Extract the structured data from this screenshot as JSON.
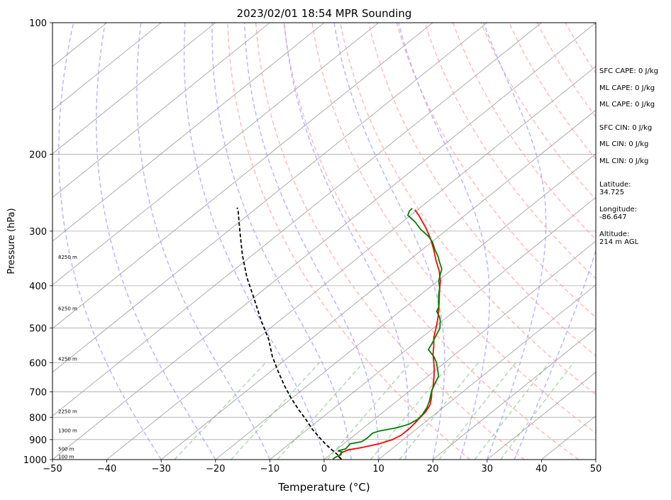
{
  "chart_data": {
    "type": "line",
    "title": "2023/02/01 18:54 MPR Sounding",
    "xlabel": "Temperature (°C)",
    "ylabel": "Pressure (hPa)",
    "xlim": [
      -50,
      50
    ],
    "ylim": [
      1000,
      100
    ],
    "y_scale": "log",
    "skew_t": true,
    "grid": true,
    "x_ticks": [
      -50,
      -40,
      -30,
      -20,
      -10,
      0,
      10,
      20,
      30,
      40,
      50
    ],
    "x_tick_labels": [
      "−50",
      "−40",
      "−30",
      "−20",
      "−10",
      "0",
      "10",
      "20",
      "30",
      "40",
      "50"
    ],
    "y_ticks": [
      100,
      200,
      300,
      400,
      500,
      600,
      700,
      800,
      900,
      1000
    ],
    "y_tick_labels": [
      "100",
      "200",
      "300",
      "400",
      "500",
      "600",
      "700",
      "800",
      "900",
      "1000"
    ],
    "height_labels": [
      {
        "text": "8250 m",
        "p": 347
      },
      {
        "text": "6250 m",
        "p": 455
      },
      {
        "text": "4250 m",
        "p": 594
      },
      {
        "text": "2250 m",
        "p": 783
      },
      {
        "text": "1300 m",
        "p": 866
      },
      {
        "text": "500 m",
        "p": 954
      },
      {
        "text": "100 m",
        "p": 995
      }
    ],
    "series": [
      {
        "color": "#ff0000",
        "points": [
          [
            3.2,
            1000
          ],
          [
            2.0,
            985
          ],
          [
            1.6,
            965
          ],
          [
            2.2,
            950
          ],
          [
            4.0,
            940
          ],
          [
            6.5,
            920
          ],
          [
            8.0,
            900
          ],
          [
            8.6,
            880
          ],
          [
            8.6,
            850
          ],
          [
            8.3,
            820
          ],
          [
            8.0,
            800
          ],
          [
            7.8,
            780
          ],
          [
            7.0,
            750
          ],
          [
            5.5,
            720
          ],
          [
            4.3,
            700
          ],
          [
            3.3,
            680
          ],
          [
            1.5,
            650
          ],
          [
            -0.5,
            620
          ],
          [
            -2.0,
            600
          ],
          [
            -4.0,
            575
          ],
          [
            -5.8,
            550
          ],
          [
            -7.8,
            525
          ],
          [
            -9.5,
            500
          ],
          [
            -11.8,
            470
          ],
          [
            -14.5,
            440
          ],
          [
            -17.5,
            410
          ],
          [
            -19.5,
            390
          ],
          [
            -22.0,
            370
          ],
          [
            -25.0,
            350
          ],
          [
            -28.0,
            330
          ],
          [
            -31.0,
            312
          ],
          [
            -34.5,
            294
          ],
          [
            -38.5,
            276
          ],
          [
            -40.5,
            268
          ]
        ]
      },
      {
        "color": "#008000",
        "points": [
          [
            1.6,
            1000
          ],
          [
            1.5,
            990
          ],
          [
            2.0,
            975
          ],
          [
            1.5,
            960
          ],
          [
            0.5,
            955
          ],
          [
            1.5,
            945
          ],
          [
            1.3,
            930
          ],
          [
            1.2,
            920
          ],
          [
            2.8,
            910
          ],
          [
            3.0,
            895
          ],
          [
            2.9,
            870
          ],
          [
            3.6,
            860
          ],
          [
            6.2,
            845
          ],
          [
            7.5,
            830
          ],
          [
            8.0,
            810
          ],
          [
            7.8,
            790
          ],
          [
            7.0,
            760
          ],
          [
            6.0,
            735
          ],
          [
            5.0,
            715
          ],
          [
            4.0,
            695
          ],
          [
            3.0,
            670
          ],
          [
            2.0,
            645
          ],
          [
            0.5,
            625
          ],
          [
            -1.5,
            600
          ],
          [
            -3.5,
            580
          ],
          [
            -6.0,
            560
          ],
          [
            -6.6,
            545
          ],
          [
            -7.8,
            520
          ],
          [
            -8.8,
            500
          ],
          [
            -10.5,
            480
          ],
          [
            -11.6,
            470
          ],
          [
            -13.2,
            458
          ],
          [
            -13.8,
            448
          ],
          [
            -15.0,
            436
          ],
          [
            -16.6,
            420
          ],
          [
            -18.0,
            405
          ],
          [
            -19.8,
            390
          ],
          [
            -21.0,
            377
          ],
          [
            -22.0,
            366
          ],
          [
            -24.0,
            353
          ],
          [
            -25.5,
            343
          ],
          [
            -27.8,
            330
          ],
          [
            -29.8,
            318
          ],
          [
            -32.0,
            308
          ],
          [
            -35.0,
            297
          ],
          [
            -37.6,
            286
          ],
          [
            -40.5,
            276
          ],
          [
            -41.2,
            270
          ],
          [
            -41.3,
            266
          ]
        ]
      },
      {
        "color": "#000000",
        "dashed": true,
        "points": [
          [
            3.2,
            1000
          ],
          [
            1.4,
            975
          ],
          [
            -0.8,
            950
          ],
          [
            -3.0,
            925
          ],
          [
            -5.1,
            900
          ],
          [
            -9.3,
            850
          ],
          [
            -12.5,
            810
          ],
          [
            -16.0,
            770
          ],
          [
            -20.0,
            725
          ],
          [
            -24.0,
            680
          ],
          [
            -28.5,
            630
          ],
          [
            -33.2,
            580
          ],
          [
            -37.8,
            530
          ],
          [
            -43.5,
            480
          ],
          [
            -49.5,
            430
          ],
          [
            -55.9,
            383
          ],
          [
            -61.9,
            340
          ],
          [
            -67.8,
            300
          ],
          [
            -72.7,
            270
          ],
          [
            -73.7,
            265
          ]
        ]
      }
    ],
    "background_lines": {
      "dry_adiabats_theta_K": [
        300,
        310,
        320,
        330,
        340,
        350,
        360,
        370,
        380,
        390,
        400,
        410,
        420,
        430,
        440,
        450,
        460,
        470
      ],
      "moist_adiabats_start_C": [
        -30,
        -20,
        -10,
        0,
        5,
        10,
        15,
        20,
        25,
        30,
        35
      ],
      "mixing_ratio_lines_g_per_kg": [
        0.4,
        1,
        2,
        4,
        7,
        10,
        16,
        24,
        32
      ],
      "colors": {
        "dry_adiabat": "#ff9999",
        "moist_adiabat": "#9999ff",
        "mixing_ratio": "#77bb77",
        "isotherm": "#999999",
        "isobar": "#aaaaaa"
      }
    }
  },
  "side_panel": [
    {
      "text": "SFC CAPE: 0 J/kg"
    },
    {
      "text": "ML CAPE: 0 J/kg"
    },
    {
      "text": "ML CAPE: 0 J/kg"
    },
    {
      "text": "SFC CIN: 0 J/kg"
    },
    {
      "text": "ML CIN: 0 J/kg"
    },
    {
      "text": "ML CIN: 0 J/kg"
    },
    {
      "text": "Latitude:\n34.725"
    },
    {
      "text": "Longitude:\n-86.647"
    },
    {
      "text": "Altitude:\n214 m AGL"
    }
  ]
}
